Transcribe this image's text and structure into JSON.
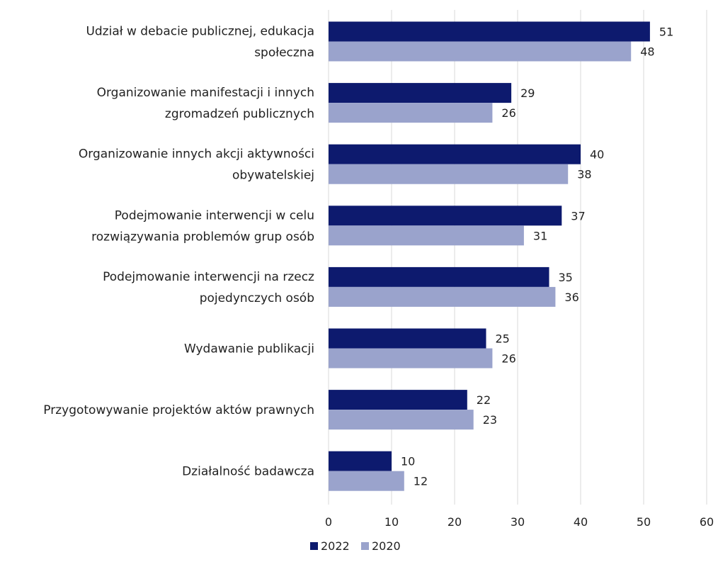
{
  "chart_data": {
    "type": "bar",
    "orientation": "horizontal",
    "categories": [
      [
        "Udział w debacie publicznej, edukacja",
        "społeczna"
      ],
      [
        "Organizowanie manifestacji i innych",
        "zgromadzeń publicznych"
      ],
      [
        "Organizowanie innych akcji aktywności",
        "obywatelskiej"
      ],
      [
        "Podejmowanie interwencji w celu",
        "rozwiązywania problemów grup osób"
      ],
      [
        "Podejmowanie interwencji na rzecz",
        "pojedynczych osób"
      ],
      [
        "Wydawanie publikacji"
      ],
      [
        "Przygotowywanie projektów aktów prawnych"
      ],
      [
        "Działalność badawcza"
      ]
    ],
    "series": [
      {
        "name": "2022",
        "color": "#0d1a6e",
        "values": [
          51,
          29,
          40,
          37,
          35,
          25,
          22,
          10
        ]
      },
      {
        "name": "2020",
        "color": "#9aa3cc",
        "values": [
          48,
          26,
          38,
          31,
          36,
          26,
          23,
          12
        ]
      }
    ],
    "xlim": [
      0,
      60
    ],
    "xticks": [
      0,
      10,
      20,
      30,
      40,
      50,
      60
    ],
    "grid": "vertical",
    "legend": "bottom-center",
    "title": "",
    "xlabel": "",
    "ylabel": ""
  }
}
